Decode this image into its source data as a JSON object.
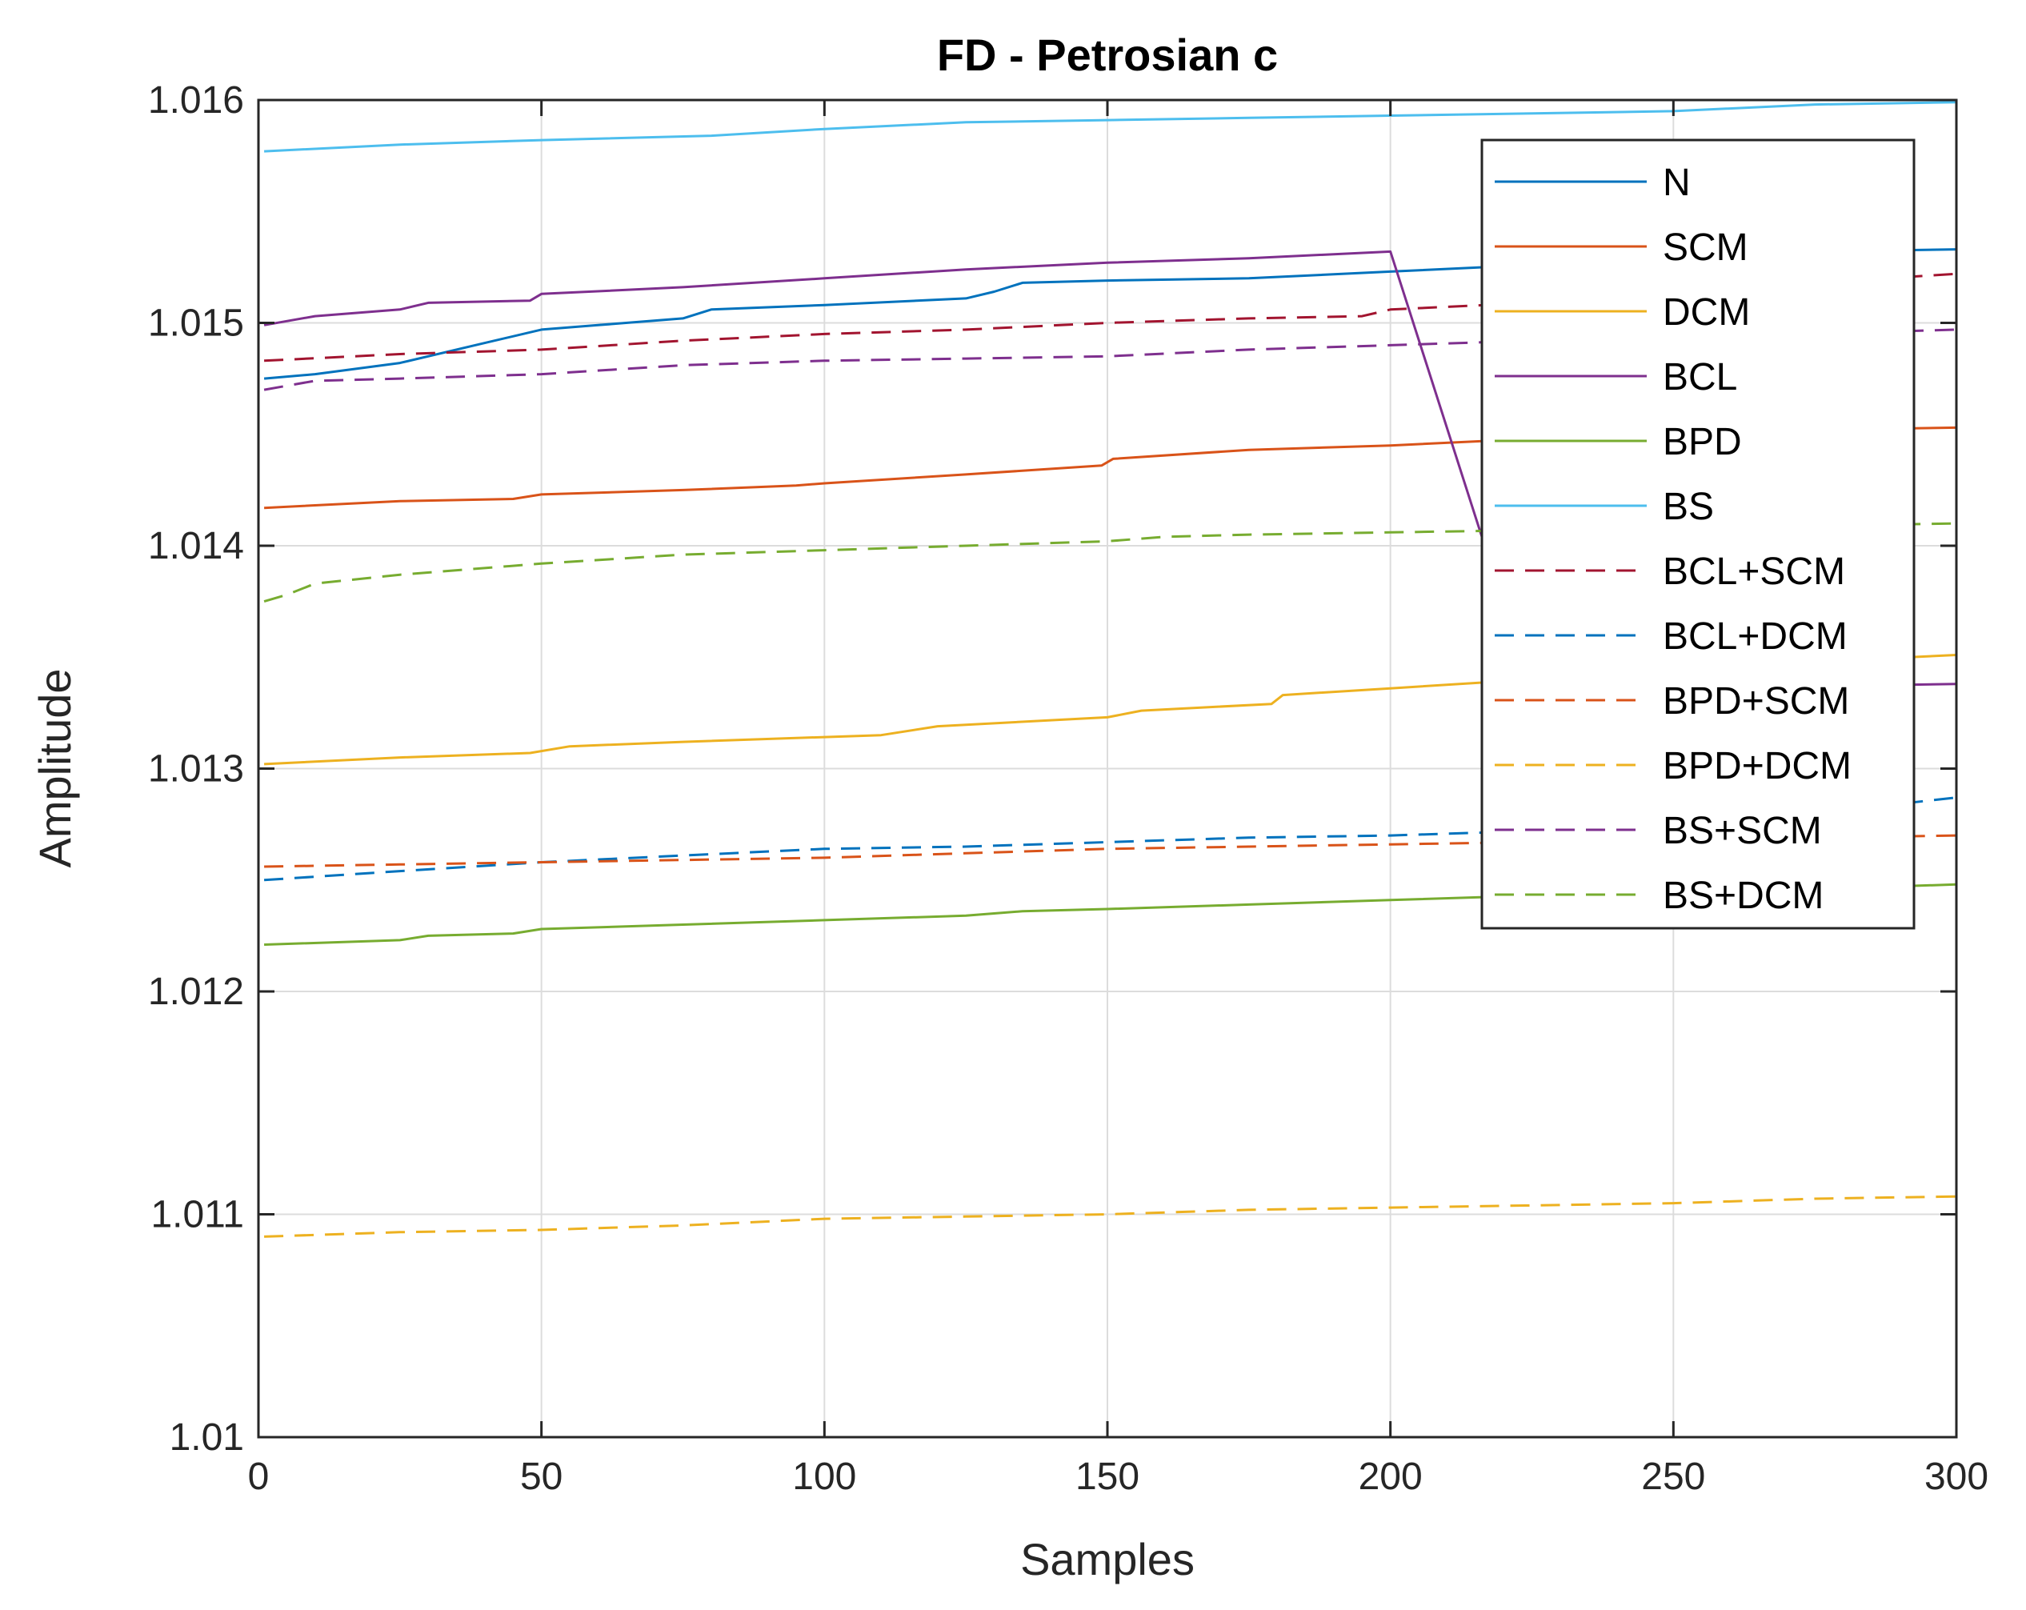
{
  "chart_data": {
    "type": "line",
    "title": "FD - Petrosian c",
    "xlabel": "Samples",
    "ylabel": "Amplitude",
    "xlim": [
      0,
      300
    ],
    "ylim": [
      1.01,
      1.016
    ],
    "xticks": [
      0,
      50,
      100,
      150,
      200,
      250,
      300
    ],
    "xtick_labels": [
      "0",
      "50",
      "100",
      "150",
      "200",
      "250",
      "300"
    ],
    "yticks": [
      1.01,
      1.011,
      1.012,
      1.013,
      1.014,
      1.015,
      1.016
    ],
    "ytick_labels": [
      "1.01",
      "1.011",
      "1.012",
      "1.013",
      "1.014",
      "1.015",
      "1.016"
    ],
    "grid": true,
    "legend_position": "top-right",
    "series": [
      {
        "name": "N",
        "color": "#0072BD",
        "dash": "solid",
        "x": [
          1,
          10,
          25,
          40,
          50,
          60,
          75,
          80,
          100,
          125,
          130,
          135,
          150,
          175,
          200,
          225,
          250,
          275,
          300
        ],
        "y": [
          1.01475,
          1.01477,
          1.01482,
          1.01491,
          1.01497,
          1.01499,
          1.01502,
          1.01506,
          1.01508,
          1.01511,
          1.01514,
          1.01518,
          1.01519,
          1.0152,
          1.01523,
          1.01526,
          1.01529,
          1.01532,
          1.01533
        ]
      },
      {
        "name": "SCM",
        "color": "#D95319",
        "dash": "solid",
        "x": [
          1,
          25,
          45,
          50,
          75,
          95,
          100,
          125,
          149,
          151,
          175,
          200,
          225,
          250,
          275,
          300
        ],
        "y": [
          1.01417,
          1.0142,
          1.01421,
          1.01423,
          1.01425,
          1.01427,
          1.01428,
          1.01432,
          1.01436,
          1.01439,
          1.01443,
          1.01445,
          1.01448,
          1.0145,
          1.01452,
          1.01453
        ]
      },
      {
        "name": "DCM",
        "color": "#EDB120",
        "dash": "solid",
        "x": [
          1,
          25,
          48,
          55,
          75,
          110,
          120,
          150,
          156,
          179,
          181,
          200,
          225,
          250,
          275,
          300
        ],
        "y": [
          1.01302,
          1.01305,
          1.01307,
          1.0131,
          1.01312,
          1.01315,
          1.01319,
          1.01323,
          1.01326,
          1.01329,
          1.01333,
          1.01336,
          1.0134,
          1.01344,
          1.01348,
          1.01351
        ]
      },
      {
        "name": "BCL",
        "color": "#7E2F8E",
        "dash": "solid",
        "x": [
          1,
          10,
          25,
          30,
          48,
          50,
          75,
          100,
          125,
          150,
          175,
          200,
          225,
          250,
          275,
          300
        ],
        "y": [
          1.01499,
          1.01503,
          1.01506,
          1.01509,
          1.0151,
          1.01513,
          1.01516,
          1.0152,
          1.01524,
          1.01527,
          1.01529,
          1.01532,
          1.01334,
          1.01335,
          1.01337,
          1.01338
        ]
      },
      {
        "name": "BPD",
        "color": "#77AC30",
        "dash": "solid",
        "x": [
          1,
          25,
          30,
          45,
          50,
          75,
          100,
          125,
          135,
          150,
          175,
          200,
          225,
          250,
          275,
          300
        ],
        "y": [
          1.01221,
          1.01223,
          1.01225,
          1.01226,
          1.01228,
          1.0123,
          1.01232,
          1.01234,
          1.01236,
          1.01237,
          1.01239,
          1.01241,
          1.01243,
          1.01244,
          1.01246,
          1.01248
        ]
      },
      {
        "name": "BS",
        "color": "#4DBEEE",
        "dash": "solid",
        "x": [
          1,
          25,
          50,
          80,
          100,
          125,
          150,
          175,
          200,
          225,
          250,
          275,
          300
        ],
        "y": [
          1.01577,
          1.0158,
          1.01582,
          1.01584,
          1.01587,
          1.0159,
          1.01591,
          1.01592,
          1.01593,
          1.01594,
          1.01595,
          1.01598,
          1.01599
        ]
      },
      {
        "name": "BCL+SCM",
        "color": "#A2142F",
        "dash": "dashed",
        "x": [
          1,
          25,
          50,
          75,
          100,
          125,
          150,
          175,
          195,
          200,
          225,
          250,
          275,
          300
        ],
        "y": [
          1.01483,
          1.01486,
          1.01488,
          1.01492,
          1.01495,
          1.01497,
          1.015,
          1.01502,
          1.01503,
          1.01506,
          1.01509,
          1.01513,
          1.01518,
          1.01522
        ]
      },
      {
        "name": "BCL+DCM",
        "color": "#0072BD",
        "dash": "dashed",
        "x": [
          1,
          25,
          50,
          75,
          100,
          125,
          150,
          175,
          200,
          225,
          250,
          275,
          300
        ],
        "y": [
          1.0125,
          1.01254,
          1.01258,
          1.01261,
          1.01264,
          1.01265,
          1.01267,
          1.01269,
          1.0127,
          1.01272,
          1.01275,
          1.0128,
          1.01287
        ]
      },
      {
        "name": "BPD+SCM",
        "color": "#D95319",
        "dash": "dashed",
        "x": [
          1,
          25,
          50,
          75,
          100,
          125,
          150,
          175,
          200,
          225,
          250,
          275,
          300
        ],
        "y": [
          1.01256,
          1.01257,
          1.01258,
          1.01259,
          1.0126,
          1.01262,
          1.01264,
          1.01265,
          1.01266,
          1.01267,
          1.01268,
          1.01269,
          1.0127
        ]
      },
      {
        "name": "BPD+DCM",
        "color": "#EDB120",
        "dash": "dashed",
        "x": [
          1,
          25,
          50,
          75,
          100,
          125,
          150,
          175,
          200,
          225,
          250,
          275,
          300
        ],
        "y": [
          1.0109,
          1.01092,
          1.01093,
          1.01095,
          1.01098,
          1.01099,
          1.011,
          1.01102,
          1.01103,
          1.01104,
          1.01105,
          1.01107,
          1.01108
        ]
      },
      {
        "name": "BS+SCM",
        "color": "#7E2F8E",
        "dash": "dashed",
        "x": [
          1,
          10,
          25,
          50,
          75,
          100,
          125,
          150,
          175,
          200,
          225,
          250,
          275,
          300
        ],
        "y": [
          1.0147,
          1.01474,
          1.01475,
          1.01477,
          1.01481,
          1.01483,
          1.01484,
          1.01485,
          1.01488,
          1.0149,
          1.01492,
          1.01494,
          1.01495,
          1.01497
        ]
      },
      {
        "name": "BS+DCM",
        "color": "#77AC30",
        "dash": "dashed",
        "x": [
          1,
          5,
          10,
          25,
          50,
          75,
          100,
          125,
          150,
          160,
          175,
          200,
          225,
          250,
          275,
          300
        ],
        "y": [
          1.01375,
          1.01378,
          1.01383,
          1.01387,
          1.01392,
          1.01396,
          1.01398,
          1.014,
          1.01402,
          1.01404,
          1.01405,
          1.01406,
          1.01407,
          1.01408,
          1.01409,
          1.0141
        ]
      }
    ]
  }
}
